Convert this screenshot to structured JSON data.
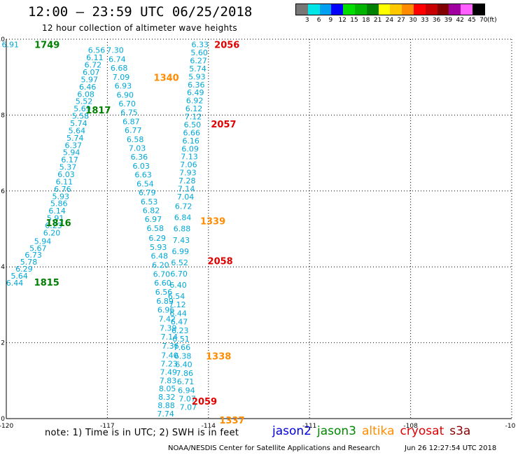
{
  "header": {
    "title": "12:00 – 23:59 UTC 06/25/2018",
    "subtitle": "12 hour collection of altimeter wave heights"
  },
  "legend": {
    "unit": "(ft)",
    "items": [
      {
        "label": "3",
        "color": "#777777"
      },
      {
        "label": "6",
        "color": "#00e5e5"
      },
      {
        "label": "9",
        "color": "#00a0f0"
      },
      {
        "label": "12",
        "color": "#0000ff"
      },
      {
        "label": "15",
        "color": "#00dd00"
      },
      {
        "label": "18",
        "color": "#00b400"
      },
      {
        "label": "21",
        "color": "#008000"
      },
      {
        "label": "24",
        "color": "#ffff00"
      },
      {
        "label": "27",
        "color": "#ffc800"
      },
      {
        "label": "30",
        "color": "#ff8c00"
      },
      {
        "label": "33",
        "color": "#ff0000"
      },
      {
        "label": "36",
        "color": "#c80000"
      },
      {
        "label": "39",
        "color": "#800000"
      },
      {
        "label": "42",
        "color": "#a000a0"
      },
      {
        "label": "45",
        "color": "#ff60ff"
      },
      {
        "label": "70",
        "color": "#000000"
      }
    ]
  },
  "map": {
    "lon_ticks": [
      "-120",
      "-117",
      "-114",
      "-111",
      "-108",
      "-10"
    ],
    "lat_ticks": [
      "0",
      "2",
      "4",
      "6",
      "8",
      "10"
    ],
    "wave_color": "#00a8d8",
    "track_labels": [
      {
        "text": "1749",
        "lon": -118.79,
        "lat": 9.86,
        "color": "#008000"
      },
      {
        "text": "1817",
        "lon": -117.27,
        "lat": 8.14,
        "color": "#008000"
      },
      {
        "text": "1816",
        "lon": -118.45,
        "lat": 5.17,
        "color": "#008000"
      },
      {
        "text": "1815",
        "lon": -118.8,
        "lat": 3.6,
        "color": "#008000"
      },
      {
        "text": "1340",
        "lon": -115.25,
        "lat": 8.99,
        "color": "#ff8c00"
      },
      {
        "text": "1339",
        "lon": -113.87,
        "lat": 5.21,
        "color": "#ff8c00"
      },
      {
        "text": "1338",
        "lon": -113.7,
        "lat": 1.65,
        "color": "#ff8c00"
      },
      {
        "text": "1337",
        "lon": -113.3,
        "lat": -0.04,
        "color": "#ff8c00"
      },
      {
        "text": "2056",
        "lon": -113.45,
        "lat": 9.86,
        "color": "#e00000"
      },
      {
        "text": "2057",
        "lon": -113.55,
        "lat": 7.77,
        "color": "#e00000"
      },
      {
        "text": "2058",
        "lon": -113.65,
        "lat": 4.16,
        "color": "#e00000"
      },
      {
        "text": "2059",
        "lon": -114.12,
        "lat": 0.46,
        "color": "#e00000"
      }
    ],
    "tracks": [
      {
        "name": "jason3-1749",
        "start": {
          "lon": -119.88,
          "lat": 9.86
        },
        "end": {
          "lon": -119.88,
          "lat": 9.86
        },
        "values": [
          "6.91"
        ]
      },
      {
        "name": "jason3-1817",
        "start": {
          "lon": -117.32,
          "lat": 9.71
        },
        "end": {
          "lon": -118.65,
          "lat": 4.9
        },
        "values": [
          "6.56",
          "6.11",
          "6.72",
          "6.07",
          "5.97",
          "6.46",
          "6.08",
          "5.52",
          "5.69",
          "5.58",
          "5.74",
          "5.64",
          "5.74",
          "6.37",
          "5.94",
          "6.17",
          "5.37",
          "6.03",
          "6.11",
          "6.76",
          "5.93",
          "5.86",
          "6.14",
          "5.91",
          "6.23",
          "6.20"
        ]
      },
      {
        "name": "jason3-1815",
        "start": {
          "lon": -118.92,
          "lat": 4.68
        },
        "end": {
          "lon": -119.75,
          "lat": 3.58
        },
        "values": [
          "5.94",
          "5.67",
          "6.73",
          "5.78",
          "6.29",
          "5.64",
          "6.44"
        ]
      },
      {
        "name": "altika-1340",
        "start": {
          "lon": -116.77,
          "lat": 9.71
        },
        "end": {
          "lon": -115.58,
          "lat": 5.02
        },
        "values": [
          "7.30",
          "6.74",
          "6.68",
          "7.09",
          "6.93",
          "6.90",
          "6.70",
          "6.75",
          "6.87",
          "6.77",
          "6.58",
          "7.03",
          "6.36",
          "6.03",
          "6.63",
          "6.54",
          "6.79",
          "6.53",
          "6.82",
          "6.97",
          "6.58"
        ]
      },
      {
        "name": "altika-1339",
        "start": {
          "lon": -115.52,
          "lat": 4.76
        },
        "end": {
          "lon": -115.13,
          "lat": 1.92
        },
        "values": [
          "6.29",
          "5.93",
          "6.48",
          "6.20",
          "6.70",
          "6.60",
          "6.56",
          "6.89",
          "6.96",
          "7.42",
          "7.39",
          "7.14",
          "7.36"
        ]
      },
      {
        "name": "altika-1338",
        "start": {
          "lon": -115.15,
          "lat": 1.67
        },
        "end": {
          "lon": -115.27,
          "lat": 0.13
        },
        "values": [
          "7.40",
          "7.23",
          "7.49",
          "7.83",
          "8.05",
          "8.32",
          "8.88",
          "7.74"
        ]
      },
      {
        "name": "cryosat-2056",
        "start": {
          "lon": -114.25,
          "lat": 9.86
        },
        "end": {
          "lon": -114.68,
          "lat": 5.85
        },
        "values": [
          "6.33",
          "5.60",
          "6.27",
          "5.74",
          "5.93",
          "6.36",
          "6.49",
          "6.92",
          "6.12",
          "7.12",
          "6.50",
          "6.66",
          "6.16",
          "6.09",
          "7.13",
          "7.06",
          "7.93",
          "7.28",
          "7.14",
          "7.04"
        ]
      },
      {
        "name": "cryosat-2058",
        "start": {
          "lon": -114.74,
          "lat": 5.6
        },
        "end": {
          "lon": -114.9,
          "lat": 3.52
        },
        "values": [
          "6.72",
          "6.84",
          "6.88",
          "7.43",
          "6.99",
          "6.52",
          "6.70",
          "6.40"
        ]
      },
      {
        "name": "cryosat-2059",
        "start": {
          "lon": -114.95,
          "lat": 3.23
        },
        "end": {
          "lon": -114.6,
          "lat": 0.3
        },
        "values": [
          "6.54",
          "7.12",
          "6.44",
          "6.47",
          "6.23",
          "6.51",
          "7.66",
          "6.38",
          "6.40",
          "7.86",
          "6.71",
          "6.94",
          "7.07",
          "7.07"
        ]
      }
    ]
  },
  "footer": {
    "note": "note: 1) Time is in UTC; 2) SWH is in feet",
    "satellites": [
      {
        "name": "jason2",
        "color": "#0000dd"
      },
      {
        "name": "jason3",
        "color": "#008800"
      },
      {
        "name": "altika",
        "color": "#ff8c00"
      },
      {
        "name": "cryosat",
        "color": "#dd0000"
      },
      {
        "name": "s3a",
        "color": "#8b0000"
      }
    ],
    "credit": "NOAA/NESDIS Center for Satellite Applications and Research",
    "timestamp": "Jun 26 12:27:54 UTC 2018"
  }
}
